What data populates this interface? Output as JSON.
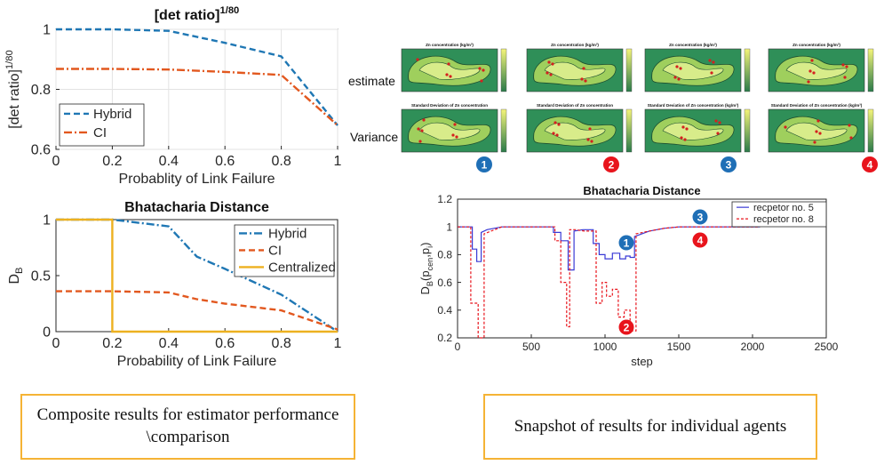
{
  "captions": {
    "left": "Composite results for  estimator performance \\comparison",
    "right": "Snapshot of results for individual agents"
  },
  "snapshot_labels": {
    "row1": "estimate",
    "row2": "Variance"
  },
  "map_titles": {
    "row1": [
      "Zn concentration (kg/m³)",
      "Zn concentration (kg/m³)",
      "Zn concentration (kg/m³)",
      "Zn concentration (kg/m³)"
    ],
    "row2": [
      "Standard Deviation of Zn concentration",
      "Standard Deviation of Zn concentration",
      "Standard Deviation of Zn concentration (kg/m³)",
      "Standard Deviation of Zn concentration (kg/m³)"
    ]
  },
  "markers": [
    {
      "label": "1",
      "color": "#1f6fb6"
    },
    {
      "label": "2",
      "color": "#e8141c"
    },
    {
      "label": "3",
      "color": "#1f6fb6"
    },
    {
      "label": "4",
      "color": "#e8141c"
    }
  ],
  "chart_data": [
    {
      "type": "line",
      "title": "[det ratio]",
      "title_sup": "1/80",
      "xlabel": "Probablity of Link Failure",
      "ylabel": "[det ratio]",
      "ylabel_sup": "1/80",
      "xlim": [
        0,
        1
      ],
      "ylim": [
        0.6,
        1
      ],
      "xticks": [
        "0",
        "0.2",
        "0.4",
        "0.6",
        "0.8",
        "1"
      ],
      "yticks": [
        "0.6",
        "0.8",
        "1"
      ],
      "grid": true,
      "legend": "middle-left",
      "series": [
        {
          "name": "Hybrid",
          "color": "#1f77b4",
          "style": "dashed",
          "x": [
            0,
            0.2,
            0.4,
            0.6,
            0.8,
            1
          ],
          "y": [
            1.0,
            1.0,
            0.995,
            0.955,
            0.91,
            0.68
          ]
        },
        {
          "name": "CI",
          "color": "#e2581f",
          "style": "dashdot",
          "x": [
            0,
            0.2,
            0.4,
            0.6,
            0.8,
            1
          ],
          "y": [
            0.868,
            0.868,
            0.866,
            0.858,
            0.848,
            0.68
          ]
        }
      ]
    },
    {
      "type": "line",
      "title": "Bhatacharia Distance",
      "xlabel": "Probability of Link Failure",
      "ylabel": "D",
      "ylabel_sub": "B",
      "xlim": [
        0,
        1
      ],
      "ylim": [
        0,
        1
      ],
      "xticks": [
        "0",
        "0.2",
        "0.4",
        "0.6",
        "0.8",
        "1"
      ],
      "yticks": [
        "0",
        "0.5",
        "1"
      ],
      "grid": false,
      "legend": "top-right",
      "series": [
        {
          "name": "Hybrid",
          "color": "#1f77b4",
          "style": "dashdot",
          "x": [
            0,
            0.2,
            0.4,
            0.5,
            0.6,
            0.8,
            1
          ],
          "y": [
            1.0,
            1.0,
            0.94,
            0.67,
            0.56,
            0.33,
            0.0
          ]
        },
        {
          "name": "CI",
          "color": "#e2581f",
          "style": "dashed",
          "x": [
            0,
            0.2,
            0.4,
            0.5,
            0.6,
            0.8,
            1
          ],
          "y": [
            0.36,
            0.36,
            0.35,
            0.29,
            0.25,
            0.19,
            0.02
          ]
        },
        {
          "name": "Centralized",
          "color": "#edb120",
          "style": "solid",
          "x": [
            0,
            0.2,
            0.2,
            1
          ],
          "y": [
            1.0,
            1.0,
            0.0,
            0.0
          ]
        }
      ]
    },
    {
      "type": "line",
      "title": "Bhatacharia Distance",
      "xlabel": "step",
      "ylabel": "D",
      "ylabel_sub": "B",
      "ylabel_rest": "(p",
      "ylabel_rest_sub": "cen",
      "ylabel_tail": ",p",
      "ylabel_tail_sub": "i",
      "ylabel_end": ")",
      "xlim": [
        0,
        2500
      ],
      "ylim": [
        0.2,
        1.2
      ],
      "xticks": [
        "0",
        "500",
        "1000",
        "1500",
        "2000",
        "2500"
      ],
      "yticks": [
        "0.2",
        "0.4",
        "0.6",
        "0.8",
        "1",
        "1.2"
      ],
      "grid": false,
      "legend": "top-right",
      "series": [
        {
          "name": "recpetor no. 5",
          "color": "#3a3ad6",
          "style": "solid",
          "x": [
            0,
            100,
            100,
            130,
            130,
            160,
            160,
            200,
            300,
            650,
            650,
            700,
            700,
            750,
            750,
            790,
            790,
            850,
            900,
            920,
            920,
            960,
            960,
            1000,
            1000,
            1050,
            1050,
            1100,
            1100,
            1140,
            1140,
            1170,
            1170,
            1200,
            1200,
            1300,
            1400,
            1500,
            2050
          ],
          "y": [
            1.0,
            1.0,
            0.84,
            0.84,
            0.75,
            0.75,
            0.96,
            0.98,
            1.0,
            1.0,
            0.96,
            0.96,
            0.9,
            0.9,
            0.69,
            0.69,
            0.97,
            0.98,
            0.98,
            0.98,
            0.88,
            0.88,
            0.8,
            0.8,
            0.77,
            0.77,
            0.81,
            0.81,
            0.77,
            0.77,
            0.79,
            0.79,
            0.78,
            0.78,
            0.93,
            0.97,
            0.99,
            1.0,
            1.0
          ]
        },
        {
          "name": "recpetor no. 8",
          "color": "#e8141c",
          "style": "dashed",
          "x": [
            0,
            90,
            90,
            140,
            140,
            180,
            180,
            300,
            660,
            660,
            700,
            700,
            740,
            740,
            760,
            760,
            800,
            860,
            900,
            940,
            940,
            980,
            980,
            1010,
            1010,
            1050,
            1050,
            1090,
            1090,
            1130,
            1130,
            1170,
            1170,
            1210,
            1210,
            1300,
            1400,
            1500,
            2050
          ],
          "y": [
            1.0,
            1.0,
            0.45,
            0.45,
            0.2,
            0.2,
            0.95,
            1.0,
            1.0,
            0.9,
            0.9,
            0.6,
            0.6,
            0.28,
            0.28,
            0.98,
            0.98,
            0.97,
            0.97,
            0.97,
            0.45,
            0.45,
            0.6,
            0.6,
            0.5,
            0.5,
            0.55,
            0.55,
            0.35,
            0.35,
            0.4,
            0.4,
            0.25,
            0.25,
            0.95,
            0.97,
            0.99,
            1.0,
            1.0
          ]
        }
      ]
    }
  ]
}
